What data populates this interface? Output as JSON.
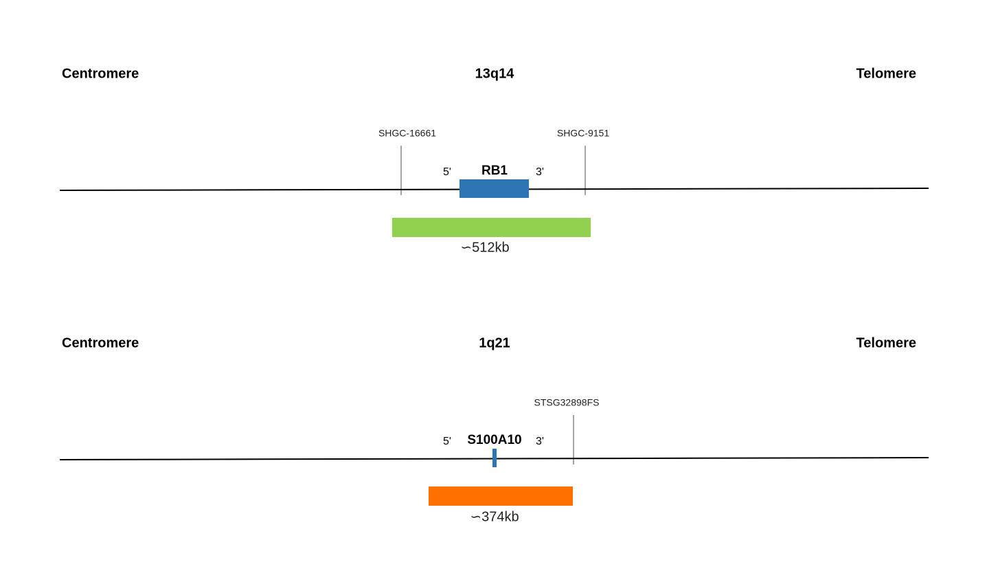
{
  "panels": [
    {
      "left": "Centromere",
      "band": "13q14",
      "right": "Telomere",
      "markers": [
        "SHGC-16661",
        "SHGC-9151"
      ],
      "five_prime": "5'",
      "gene": "RB1",
      "three_prime": "3'",
      "probe": "∽512kb"
    },
    {
      "left": "Centromere",
      "band": "1q21",
      "right": "Telomere",
      "markers": [
        "STSG32898FS"
      ],
      "five_prime": "5'",
      "gene": "S100A10",
      "three_prime": "3'",
      "probe": "∽374kb"
    }
  ]
}
